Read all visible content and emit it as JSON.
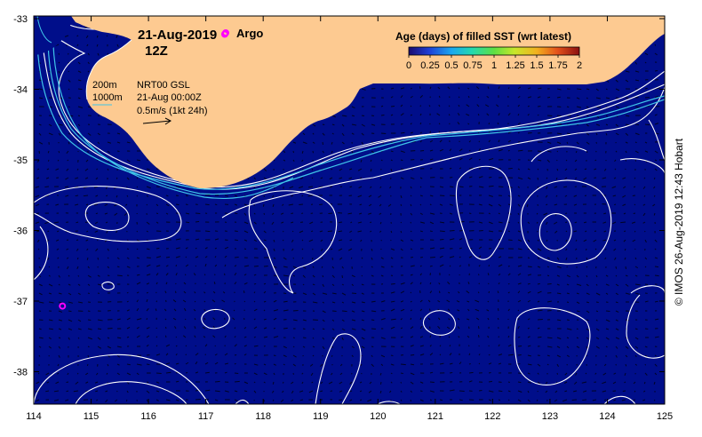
{
  "title": {
    "date": "21-Aug-2019",
    "time": "12Z"
  },
  "legend": {
    "argo_label": "Argo",
    "colorbar_title": "Age (days) of filled SST (wrt latest)",
    "colorbar_ticks": [
      "0",
      "0.25",
      "0.5",
      "0.75",
      "1",
      "1.25",
      "1.5",
      "1.75",
      "2"
    ],
    "isobath_200": "200m",
    "isobath_1000": "1000m",
    "product": "NRT00 GSL",
    "product_time": "21-Aug 00:00Z",
    "vector_scale": "0.5m/s (1kt 24h)"
  },
  "axes": {
    "x_ticks": [
      "114",
      "115",
      "116",
      "117",
      "118",
      "119",
      "120",
      "121",
      "122",
      "123",
      "124",
      "125"
    ],
    "y_ticks": [
      "-33",
      "-34",
      "-35",
      "-36",
      "-37",
      "-38"
    ]
  },
  "credit": "© IMOS 26-Aug-2019 12:43 Hobart",
  "argo_floats": [
    {
      "lon": 114.5,
      "lat": -37.07
    },
    {
      "lon": 117.33,
      "lat": -33.22
    }
  ],
  "colors": {
    "ocean": "#000e8a",
    "land": "#fdca91",
    "isobath": "#3fc4e8",
    "contour": "#ffffff",
    "argo": "#ff00ff"
  }
}
